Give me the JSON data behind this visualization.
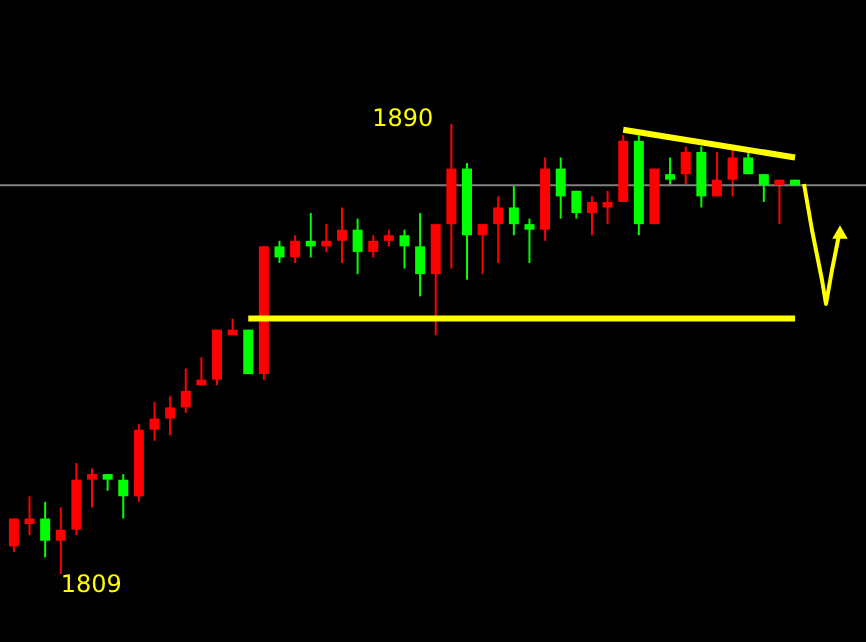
{
  "chart_data": {
    "type": "candlestick",
    "categories": [
      null,
      null,
      null,
      null,
      null,
      null,
      null,
      null,
      null,
      null,
      null,
      null,
      null,
      null,
      null,
      null,
      null,
      null,
      null,
      null,
      null,
      null,
      null,
      null,
      null,
      null,
      null,
      null,
      null,
      null,
      null,
      null,
      null,
      null,
      null,
      null,
      null,
      null,
      null,
      null,
      null,
      null,
      null,
      null,
      null,
      null,
      null,
      null,
      null,
      null,
      null
    ],
    "ohlc": [
      [
        1814,
        1819,
        1813,
        1819
      ],
      [
        1818,
        1823,
        1816,
        1819
      ],
      [
        1819,
        1822,
        1812,
        1815
      ],
      [
        1815,
        1821,
        1809,
        1817
      ],
      [
        1817,
        1829,
        1816,
        1826
      ],
      [
        1826,
        1828,
        1821,
        1827
      ],
      [
        1827,
        1827,
        1824,
        1826
      ],
      [
        1826,
        1827,
        1819,
        1823
      ],
      [
        1823,
        1836,
        1822,
        1835
      ],
      [
        1835,
        1840,
        1833,
        1837
      ],
      [
        1837,
        1841,
        1834,
        1839
      ],
      [
        1839,
        1846,
        1838,
        1842
      ],
      [
        1843,
        1848,
        1843,
        1844
      ],
      [
        1844,
        1853,
        1843,
        1853
      ],
      [
        1852,
        1855,
        1852,
        1853
      ],
      [
        1853,
        1853,
        1845,
        1845
      ],
      [
        1845,
        1868,
        1844,
        1868
      ],
      [
        1868,
        1869,
        1865,
        1866
      ],
      [
        1866,
        1870,
        1865,
        1869
      ],
      [
        1869,
        1874,
        1866,
        1868
      ],
      [
        1868,
        1872,
        1867,
        1869
      ],
      [
        1869,
        1875,
        1865,
        1871
      ],
      [
        1871,
        1873,
        1863,
        1867
      ],
      [
        1867,
        1870,
        1866,
        1869
      ],
      [
        1869,
        1871,
        1868,
        1870
      ],
      [
        1870,
        1871,
        1864,
        1868
      ],
      [
        1868,
        1874,
        1859,
        1863
      ],
      [
        1863,
        1872,
        1852,
        1872
      ],
      [
        1872,
        1890,
        1864,
        1882
      ],
      [
        1882,
        1883,
        1862,
        1870
      ],
      [
        1870,
        1872,
        1863,
        1872
      ],
      [
        1872,
        1877,
        1865,
        1875
      ],
      [
        1875,
        1879,
        1870,
        1872
      ],
      [
        1872,
        1873,
        1865,
        1871
      ],
      [
        1871,
        1884,
        1869,
        1882
      ],
      [
        1882,
        1884,
        1873,
        1877
      ],
      [
        1878,
        1878,
        1873,
        1874
      ],
      [
        1874,
        1877,
        1870,
        1876
      ],
      [
        1875,
        1878,
        1872,
        1876
      ],
      [
        1876,
        1888,
        1876,
        1887
      ],
      [
        1887,
        1888,
        1870,
        1872
      ],
      [
        1872,
        1882,
        1872,
        1882
      ],
      [
        1881,
        1884,
        1879,
        1880
      ],
      [
        1881,
        1886,
        1879,
        1885
      ],
      [
        1885,
        1886,
        1875,
        1877
      ],
      [
        1877,
        1885,
        1877,
        1880
      ],
      [
        1880,
        1886,
        1877,
        1884
      ],
      [
        1884,
        1885,
        1881,
        1881
      ],
      [
        1881,
        1881,
        1876,
        1879
      ],
      [
        1879,
        1880,
        1872,
        1880
      ],
      [
        1880,
        1880,
        1879,
        1879
      ]
    ],
    "colors": [
      "#ff0000",
      "#ff0000",
      "#00ff00",
      "#ff0000",
      "#ff0000",
      "#ff0000",
      "#00ff00",
      "#00ff00",
      "#ff0000",
      "#ff0000",
      "#ff0000",
      "#ff0000",
      "#ff0000",
      "#ff0000",
      "#ff0000",
      "#00ff00",
      "#ff0000",
      "#00ff00",
      "#ff0000",
      "#00ff00",
      "#ff0000",
      "#ff0000",
      "#00ff00",
      "#ff0000",
      "#ff0000",
      "#00ff00",
      "#00ff00",
      "#ff0000",
      "#ff0000",
      "#00ff00",
      "#ff0000",
      "#ff0000",
      "#00ff00",
      "#00ff00",
      "#ff0000",
      "#00ff00",
      "#00ff00",
      "#ff0000",
      "#ff0000",
      "#ff0000",
      "#00ff00",
      "#ff0000",
      "#00ff00",
      "#ff0000",
      "#00ff00",
      "#ff0000",
      "#ff0000",
      "#00ff00",
      "#00ff00",
      "#ff0000",
      "#00ff00"
    ],
    "series": [
      {
        "type": "line",
        "color": "#ffff00",
        "values": [
          null,
          null,
          null,
          null,
          null,
          null,
          null,
          null,
          null,
          null,
          null,
          null,
          null,
          null,
          null,
          1855,
          null,
          null,
          null,
          null,
          null,
          null,
          null,
          null,
          null,
          null,
          null,
          null,
          null,
          null,
          null,
          null,
          null,
          null,
          null,
          null,
          null,
          null,
          null,
          null,
          null,
          null,
          null,
          null,
          null,
          null,
          null,
          null,
          null,
          null,
          1855
        ]
      },
      {
        "type": "line",
        "color": "#ffff00",
        "values": [
          null,
          null,
          null,
          null,
          null,
          null,
          null,
          null,
          null,
          null,
          null,
          null,
          null,
          null,
          null,
          null,
          null,
          null,
          null,
          null,
          null,
          null,
          null,
          null,
          null,
          null,
          null,
          null,
          null,
          null,
          null,
          null,
          null,
          null,
          null,
          null,
          null,
          null,
          null,
          1889,
          null,
          null,
          null,
          null,
          null,
          null,
          null,
          null,
          null,
          null,
          1884
        ]
      }
    ],
    "ref_lines": [
      {
        "axis": "y",
        "value": 1879,
        "color": "#808080"
      }
    ],
    "annotations": [
      "1890",
      "1809"
    ],
    "grid": false
  }
}
